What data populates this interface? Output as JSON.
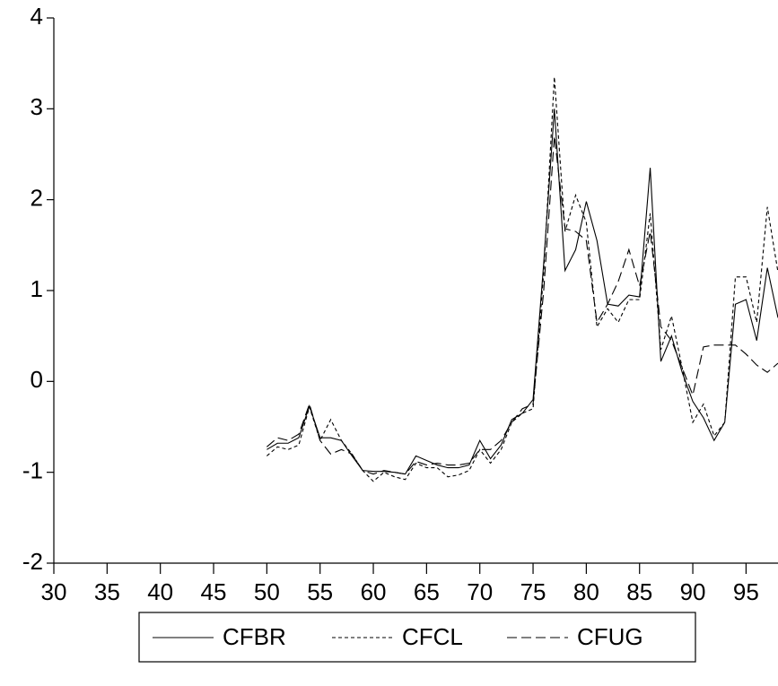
{
  "chart_data": {
    "type": "line",
    "x": [
      50,
      51,
      52,
      53,
      54,
      55,
      56,
      57,
      58,
      59,
      60,
      61,
      62,
      63,
      64,
      65,
      66,
      67,
      68,
      69,
      70,
      71,
      72,
      73,
      74,
      75,
      76,
      77,
      78,
      79,
      80,
      81,
      82,
      83,
      84,
      85,
      86,
      87,
      88,
      89,
      90,
      91,
      92,
      93,
      94,
      95,
      96,
      97,
      98
    ],
    "series": [
      {
        "name": "CFBR",
        "color": "#000000",
        "dash": "none",
        "values": [
          -0.75,
          -0.68,
          -0.68,
          -0.62,
          -0.27,
          -0.62,
          -0.62,
          -0.65,
          -0.82,
          -0.98,
          -0.99,
          -0.99,
          -1.0,
          -1.02,
          -0.82,
          -0.87,
          -0.92,
          -0.95,
          -0.95,
          -0.92,
          -0.65,
          -0.85,
          -0.7,
          -0.42,
          -0.35,
          -0.2,
          1.3,
          3.0,
          1.22,
          1.45,
          1.98,
          1.55,
          0.85,
          0.83,
          0.95,
          0.93,
          2.35,
          0.22,
          0.5,
          0.1,
          -0.22,
          -0.4,
          -0.65,
          -0.45,
          0.85,
          0.9,
          0.45,
          1.25,
          0.7
        ]
      },
      {
        "name": "CFCL",
        "color": "#000000",
        "dash": "4,3",
        "values": [
          -0.82,
          -0.72,
          -0.75,
          -0.7,
          -0.28,
          -0.65,
          -0.42,
          -0.65,
          -0.8,
          -0.98,
          -1.1,
          -1.0,
          -1.05,
          -1.08,
          -0.9,
          -0.95,
          -0.95,
          -1.05,
          -1.03,
          -0.98,
          -0.75,
          -0.9,
          -0.75,
          -0.45,
          -0.35,
          -0.3,
          1.2,
          3.35,
          1.65,
          2.05,
          1.75,
          0.6,
          0.8,
          0.65,
          0.9,
          0.9,
          1.85,
          0.35,
          0.72,
          0.15,
          -0.45,
          -0.25,
          -0.6,
          -0.45,
          1.15,
          1.15,
          0.65,
          1.92,
          1.2
        ]
      },
      {
        "name": "CFUG",
        "color": "#000000",
        "dash": "11,5",
        "values": [
          -0.72,
          -0.62,
          -0.65,
          -0.58,
          -0.25,
          -0.65,
          -0.8,
          -0.75,
          -0.8,
          -0.98,
          -1.02,
          -0.98,
          -1.0,
          -1.02,
          -0.88,
          -0.92,
          -0.9,
          -0.92,
          -0.92,
          -0.9,
          -0.75,
          -0.75,
          -0.65,
          -0.45,
          -0.3,
          -0.25,
          1.0,
          2.7,
          1.68,
          1.65,
          1.55,
          0.65,
          0.85,
          1.1,
          1.45,
          1.05,
          1.65,
          0.6,
          0.45,
          0.15,
          -0.15,
          0.38,
          0.4,
          0.4,
          0.4,
          0.3,
          0.18,
          0.1,
          0.2
        ]
      }
    ],
    "xlim": [
      30,
      98
    ],
    "xticks": [
      30,
      35,
      40,
      45,
      50,
      55,
      60,
      65,
      70,
      75,
      80,
      85,
      90,
      95
    ],
    "ylim": [
      -2,
      4
    ],
    "yticks": [
      -2,
      -1,
      0,
      1,
      2,
      3,
      4
    ],
    "legend": "bottom"
  }
}
